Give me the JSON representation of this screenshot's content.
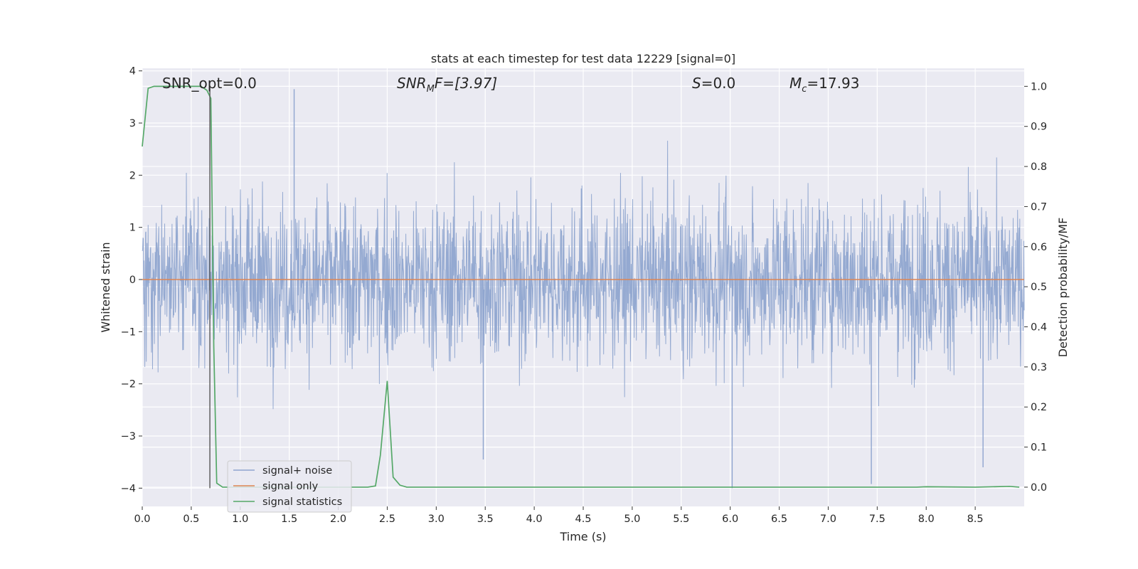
{
  "chart_data": {
    "type": "line",
    "title": "stats at each timestep for test data 12229 [signal=0]",
    "xlabel": "Time (s)",
    "ylabel_left": "Whitened strain",
    "ylabel_right": "Detection probability/MF",
    "xlim": [
      0.0,
      9.0
    ],
    "ylim_left": [
      -4.35,
      4.05
    ],
    "ylim_right": [
      -0.048,
      1.045
    ],
    "x_ticks": [
      "0.0",
      "0.5",
      "1.0",
      "1.5",
      "2.0",
      "2.5",
      "3.0",
      "3.5",
      "4.0",
      "4.5",
      "5.0",
      "5.5",
      "6.0",
      "6.5",
      "7.0",
      "7.5",
      "8.0",
      "8.5"
    ],
    "y_ticks_left": [
      "4",
      "3",
      "2",
      "1",
      "0",
      "−1",
      "−2",
      "−3",
      "−4"
    ],
    "y_ticks_right": [
      "1.0",
      "0.9",
      "0.8",
      "0.7",
      "0.6",
      "0.5",
      "0.4",
      "0.3",
      "0.2",
      "0.1",
      "0.0"
    ],
    "grid": true,
    "legend_position": "lower-left",
    "annotations": {
      "snr_opt": "SNR_opt=0.0",
      "snr_mf_main": "SNR",
      "snr_mf_sub": "M",
      "snr_mf_rest": "F=[3.97]",
      "s_main": "S",
      "s_rest": "=0.0",
      "mc_main": "M",
      "mc_sub": "c",
      "mc_rest": "=17.93"
    },
    "vertical_marker_x": 0.69,
    "series": [
      {
        "name": "signal+ noise",
        "color": "#8fa5cf",
        "kind": "noise",
        "description_stats": {
          "typical_amplitude": 1.3,
          "max_peak": 3.65,
          "min_peak": -4.0
        }
      },
      {
        "name": "signal only",
        "color": "#dd8452",
        "x": [
          0.0,
          9.0
        ],
        "y": [
          0.0,
          0.0
        ]
      },
      {
        "name": "signal statistics",
        "color": "#55a868",
        "axis": "right",
        "x": [
          0.0,
          0.06,
          0.12,
          0.2,
          0.3,
          0.4,
          0.5,
          0.6,
          0.66,
          0.7,
          0.73,
          0.76,
          0.82,
          0.9,
          1.0,
          1.5,
          2.0,
          2.3,
          2.38,
          2.43,
          2.5,
          2.56,
          2.63,
          2.7,
          2.8,
          3.0,
          4.0,
          5.0,
          6.0,
          7.0,
          7.9,
          8.0,
          8.5,
          8.85,
          8.95
        ],
        "y": [
          0.85,
          0.995,
          1.0,
          1.0,
          1.0,
          1.0,
          1.0,
          1.0,
          0.99,
          0.97,
          0.35,
          0.01,
          0.0,
          0.0,
          0.0,
          0.0,
          0.0,
          0.0,
          0.003,
          0.08,
          0.265,
          0.025,
          0.005,
          0.0,
          0.0,
          0.0,
          0.0,
          0.0,
          0.0,
          0.0,
          0.0,
          0.001,
          0.0,
          0.002,
          0.0
        ]
      }
    ]
  }
}
